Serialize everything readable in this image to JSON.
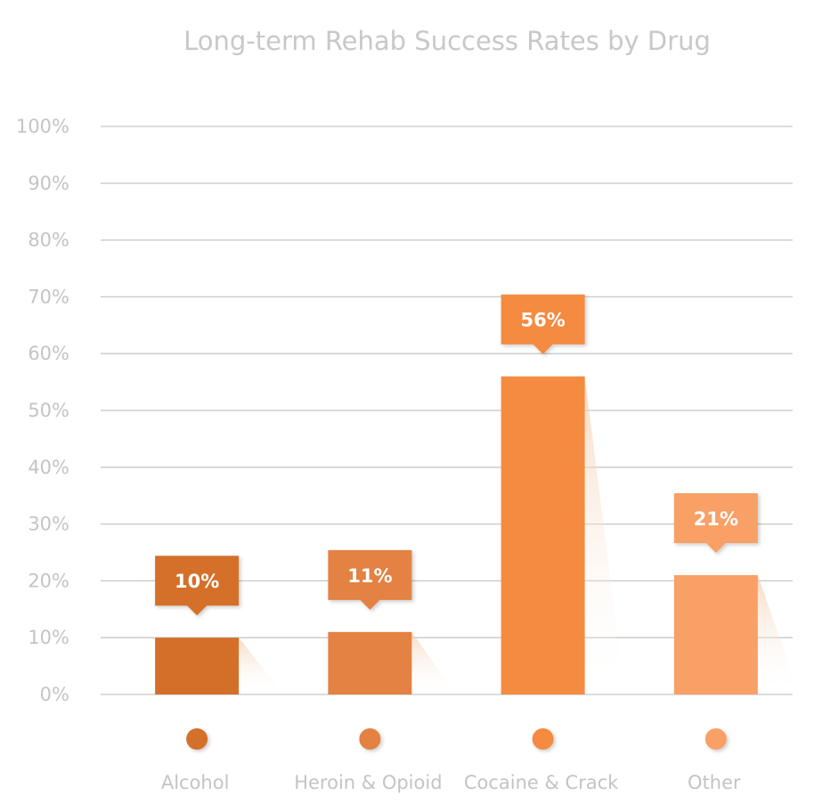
{
  "chart_data": {
    "type": "bar",
    "title": "Long-term Rehab Success Rates by Drug",
    "xlabel": "",
    "ylabel": "",
    "categories": [
      "Alcohol",
      "Heroin & Opioid",
      "Cocaine & Crack",
      "Other"
    ],
    "values": [
      10,
      11,
      56,
      21
    ],
    "data_labels": [
      "10%",
      "11%",
      "56%",
      "21%"
    ],
    "colors": [
      "#D46F2A",
      "#E38243",
      "#F48B40",
      "#F8A066"
    ],
    "ylim": [
      0,
      100
    ],
    "yticks": [
      0,
      10,
      20,
      30,
      40,
      50,
      60,
      70,
      80,
      90,
      100
    ],
    "ytick_labels": [
      "0%",
      "10%",
      "20%",
      "30%",
      "40%",
      "50%",
      "60%",
      "70%",
      "80%",
      "90%",
      "100%"
    ],
    "grid": true,
    "legend": "bottom (colored dots above category labels)"
  }
}
